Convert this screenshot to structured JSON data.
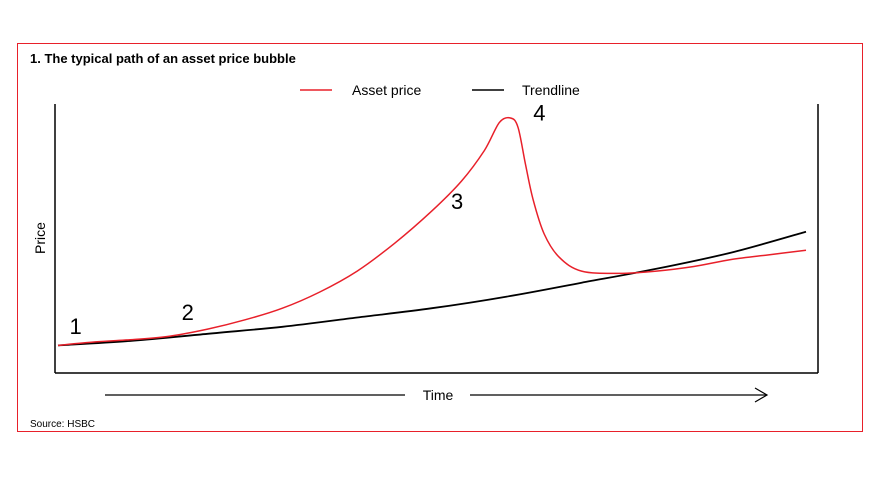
{
  "chart_data": {
    "type": "line",
    "title": "1. The typical path of an asset price bubble",
    "ylabel": "Price",
    "xlabel": "Time",
    "source": "Source: HSBC",
    "legend_position": "top-center",
    "series": [
      {
        "name": "Asset price",
        "color": "#e8202a",
        "points": [
          [
            0,
            0.02
          ],
          [
            0.05,
            0.035
          ],
          [
            0.1,
            0.045
          ],
          [
            0.15,
            0.06
          ],
          [
            0.2,
            0.09
          ],
          [
            0.25,
            0.13
          ],
          [
            0.3,
            0.18
          ],
          [
            0.35,
            0.25
          ],
          [
            0.4,
            0.34
          ],
          [
            0.45,
            0.46
          ],
          [
            0.5,
            0.6
          ],
          [
            0.54,
            0.73
          ],
          [
            0.57,
            0.86
          ],
          [
            0.59,
            0.98
          ],
          [
            0.605,
            1.0
          ],
          [
            0.615,
            0.96
          ],
          [
            0.625,
            0.8
          ],
          [
            0.635,
            0.65
          ],
          [
            0.65,
            0.5
          ],
          [
            0.67,
            0.4
          ],
          [
            0.7,
            0.34
          ],
          [
            0.75,
            0.33
          ],
          [
            0.8,
            0.34
          ],
          [
            0.85,
            0.36
          ],
          [
            0.9,
            0.39
          ],
          [
            0.95,
            0.41
          ],
          [
            1.0,
            0.43
          ]
        ]
      },
      {
        "name": "Trendline",
        "color": "#000000",
        "points": [
          [
            0,
            0.02
          ],
          [
            0.1,
            0.04
          ],
          [
            0.2,
            0.07
          ],
          [
            0.3,
            0.1
          ],
          [
            0.4,
            0.14
          ],
          [
            0.5,
            0.18
          ],
          [
            0.6,
            0.23
          ],
          [
            0.7,
            0.29
          ],
          [
            0.8,
            0.35
          ],
          [
            0.9,
            0.42
          ],
          [
            1.0,
            0.51
          ]
        ]
      }
    ],
    "annotations": [
      {
        "label": "1",
        "x": 0.01,
        "y": 0.06
      },
      {
        "label": "2",
        "x": 0.16,
        "y": 0.12
      },
      {
        "label": "3",
        "x": 0.52,
        "y": 0.6
      },
      {
        "label": "4",
        "x": 0.63,
        "y": 0.98
      }
    ]
  }
}
